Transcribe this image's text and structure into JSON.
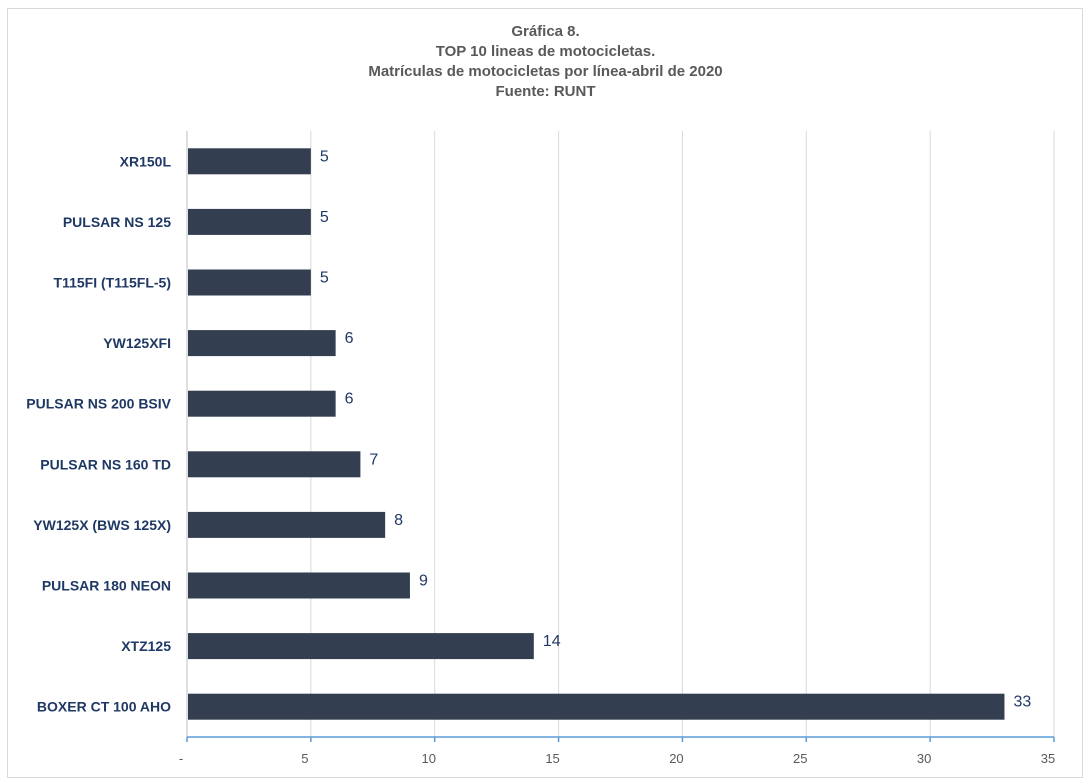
{
  "chart_data": {
    "type": "bar",
    "orientation": "horizontal",
    "title_lines": [
      "Gráfica 8.",
      "TOP 10 lineas de motocicletas.",
      "Matrículas de motocicletas por línea-abril de 2020",
      "Fuente: RUNT"
    ],
    "categories": [
      "XR150L",
      "PULSAR NS 125",
      "T115FI (T115FL-5)",
      "YW125XFI",
      "PULSAR NS 200 BSIV",
      "PULSAR NS 160 TD",
      "YW125X (BWS 125X)",
      "PULSAR 180 NEON",
      "XTZ125",
      "BOXER CT 100 AHO"
    ],
    "values": [
      5,
      5,
      5,
      6,
      6,
      7,
      8,
      9,
      14,
      33
    ],
    "xlim": [
      0,
      35
    ],
    "xticks": [
      "-",
      "5",
      "10",
      "15",
      "20",
      "25",
      "30",
      "35"
    ],
    "grid": true,
    "bar_color": "#333f50"
  }
}
